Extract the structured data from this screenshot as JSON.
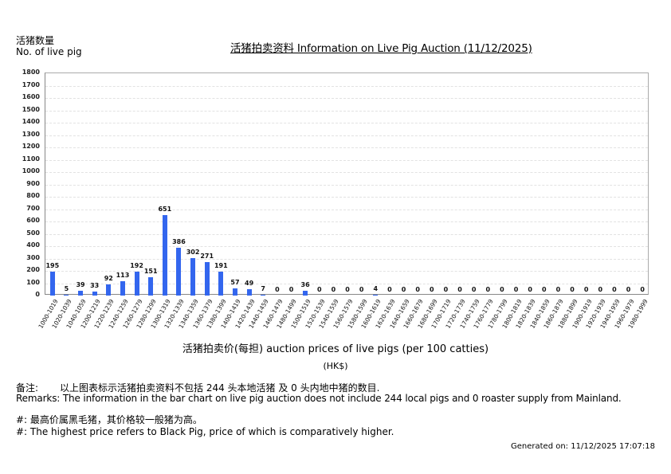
{
  "header": {
    "ylabel_cn": "活猪数量",
    "ylabel_en": "No. of live pig",
    "title": "活猪拍卖资料 Information on Live Pig Auction (11/12/2025)"
  },
  "xaxis": {
    "title": "活猪拍卖价(每担) auction prices of live pigs (per 100 catties)",
    "unit": "(HK$)"
  },
  "remarks": {
    "cn_label": "备注:",
    "cn_text": "以上图表标示活猪拍卖资料不包括 244 头本地活猪 及 0 头内地中猪的数目.",
    "en_text": "Remarks: The information in the bar chart on live pig auction does not include 244 local pigs and 0 roaster supply from Mainland.",
    "note_cn": "#: 最高价属黑毛猪，其价格较一般猪为高。",
    "note_en": "#: The highest price refers to Black Pig, price of which is comparatively higher."
  },
  "footer": {
    "generated": "Generated on: 11/12/2025 17:07:18"
  },
  "colors": {
    "bar": "#3366ee"
  },
  "chart_data": {
    "type": "bar",
    "title": "活猪拍卖资料 Information on Live Pig Auction (11/12/2025)",
    "xlabel": "活猪拍卖价(每担) auction prices of live pigs (per 100 catties) (HK$)",
    "ylabel": "活猪数量 No. of live pig",
    "ylim": [
      0,
      1800
    ],
    "yticks": [
      0,
      100,
      200,
      300,
      400,
      500,
      600,
      700,
      800,
      900,
      1000,
      1100,
      1200,
      1300,
      1400,
      1500,
      1600,
      1700,
      1800
    ],
    "grid": true,
    "legend": null,
    "categories": [
      "1000-1019",
      "1020-1039",
      "1040-1059",
      "1200-1219",
      "1220-1239",
      "1240-1259",
      "1260-1279",
      "1280-1299",
      "1300-1319",
      "1320-1339",
      "1340-1359",
      "1360-1379",
      "1380-1399",
      "1400-1419",
      "1420-1439",
      "1440-1459",
      "1460-1479",
      "1480-1499",
      "1500-1519",
      "1520-1539",
      "1540-1559",
      "1560-1579",
      "1580-1599",
      "1600-1619",
      "1620-1639",
      "1640-1659",
      "1660-1679",
      "1680-1699",
      "1700-1719",
      "1720-1739",
      "1740-1759",
      "1760-1779",
      "1780-1799",
      "1800-1819",
      "1820-1839",
      "1840-1859",
      "1860-1879",
      "1880-1899",
      "1900-1919",
      "1920-1939",
      "1940-1959",
      "1960-1979",
      "1980-1999"
    ],
    "values": [
      195,
      5,
      39,
      33,
      92,
      113,
      192,
      151,
      651,
      386,
      302,
      271,
      191,
      57,
      49,
      7,
      0,
      0,
      36,
      0,
      0,
      0,
      0,
      4,
      0,
      0,
      0,
      0,
      0,
      0,
      0,
      0,
      0,
      0,
      0,
      0,
      0,
      0,
      0,
      0,
      0,
      0,
      0
    ]
  }
}
